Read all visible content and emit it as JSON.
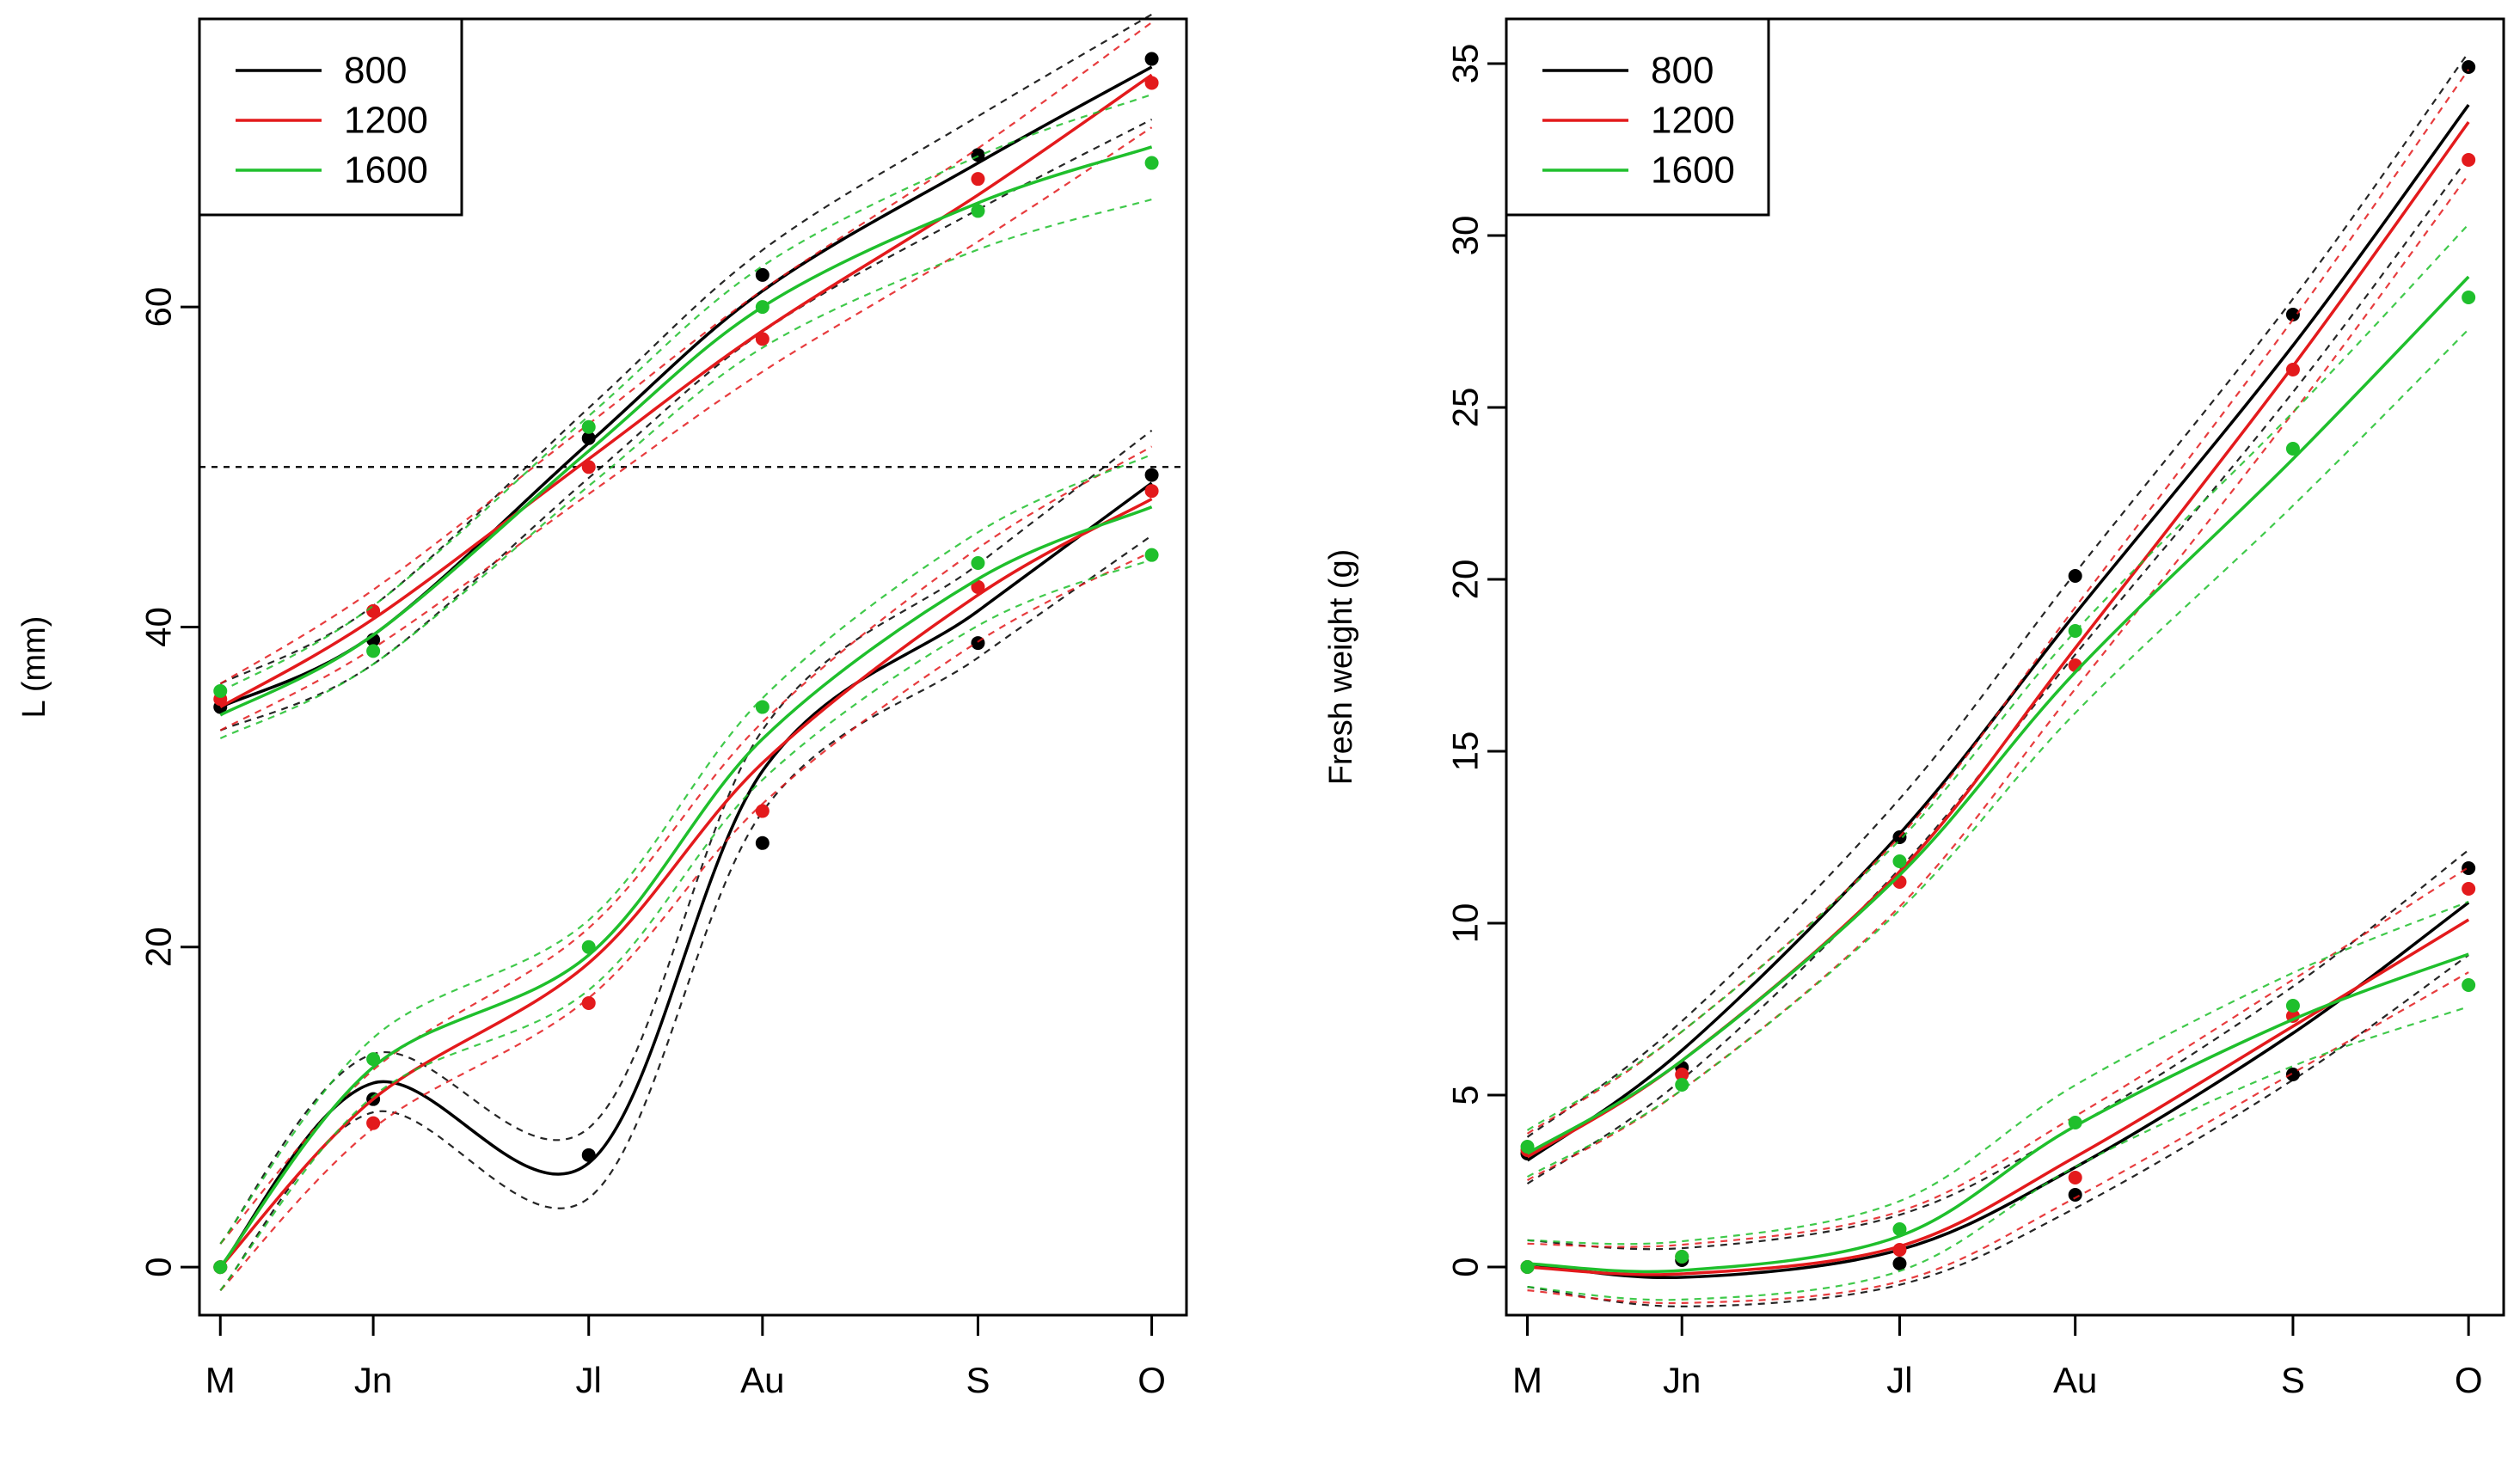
{
  "colors": {
    "800": "#000000",
    "1200": "#e31a1c",
    "1600": "#1fbf2c"
  },
  "chart_data": [
    {
      "type": "line",
      "ylabel": "L (mm)",
      "xlabel": "",
      "x_ticks": [
        {
          "label": "M",
          "x": 0
        },
        {
          "label": "Jn",
          "x": 1.1
        },
        {
          "label": "Jl",
          "x": 2.65
        },
        {
          "label": "Au",
          "x": 3.9
        },
        {
          "label": "S",
          "x": 5.45
        },
        {
          "label": "O",
          "x": 6.7
        }
      ],
      "xlim": [
        -0.15,
        6.95
      ],
      "ylim": [
        -3,
        78
      ],
      "y_ticks": [
        0,
        20,
        40,
        60
      ],
      "reference_line_y": 50,
      "legend": {
        "position": "top-left",
        "entries": [
          "800",
          "1200",
          "1600"
        ]
      },
      "series": [
        {
          "name": "800",
          "color_key": "800",
          "group": "upper",
          "x": [
            0,
            1.1,
            2.65,
            3.9,
            5.45,
            6.7
          ],
          "fit": [
            35,
            39.5,
            51.5,
            61,
            69,
            75
          ],
          "points": [
            [
              0,
              35
            ],
            [
              1.1,
              39.2
            ],
            [
              2.65,
              51.8
            ],
            [
              3.9,
              62
            ],
            [
              5.45,
              69.5
            ],
            [
              6.7,
              75.5
            ]
          ]
        },
        {
          "name": "1200",
          "color_key": "1200",
          "group": "upper",
          "x": [
            0,
            1.1,
            2.65,
            3.9,
            5.45,
            6.7
          ],
          "fit": [
            35,
            40.5,
            50.5,
            58.5,
            67,
            74.5
          ],
          "points": [
            [
              0,
              35.5
            ],
            [
              1.1,
              41
            ],
            [
              2.65,
              50
            ],
            [
              3.9,
              58
            ],
            [
              5.45,
              68
            ],
            [
              6.7,
              74
            ]
          ]
        },
        {
          "name": "1600",
          "color_key": "1600",
          "group": "upper",
          "x": [
            0,
            1.1,
            2.65,
            3.9,
            5.45,
            6.7
          ],
          "fit": [
            34.5,
            39.5,
            51,
            60,
            66.5,
            70
          ],
          "points": [
            [
              0,
              36
            ],
            [
              1.1,
              38.5
            ],
            [
              2.65,
              52.5
            ],
            [
              3.9,
              60
            ],
            [
              5.45,
              66
            ],
            [
              6.7,
              69
            ]
          ]
        },
        {
          "name": "800",
          "color_key": "800",
          "group": "lower",
          "x": [
            0,
            1.1,
            2.65,
            3.9,
            5.45,
            6.7
          ],
          "fit": [
            0,
            11.5,
            6.5,
            31,
            41,
            49
          ],
          "points": [
            [
              0,
              0
            ],
            [
              1.1,
              10.5
            ],
            [
              2.65,
              7
            ],
            [
              3.9,
              26.5
            ],
            [
              5.45,
              39
            ],
            [
              6.7,
              49.5
            ]
          ]
        },
        {
          "name": "1200",
          "color_key": "1200",
          "group": "lower",
          "x": [
            0,
            1.1,
            2.65,
            3.9,
            5.45,
            6.7
          ],
          "fit": [
            0,
            10.5,
            19,
            31.5,
            42,
            48
          ],
          "points": [
            [
              0,
              0
            ],
            [
              1.1,
              9
            ],
            [
              2.65,
              16.5
            ],
            [
              3.9,
              28.5
            ],
            [
              5.45,
              42.5
            ],
            [
              6.7,
              48.5
            ]
          ]
        },
        {
          "name": "1600",
          "color_key": "1600",
          "group": "lower",
          "x": [
            0,
            1.1,
            2.65,
            3.9,
            5.45,
            6.7
          ],
          "fit": [
            0,
            12.5,
            19.5,
            33,
            43,
            47.5
          ],
          "points": [
            [
              0,
              0
            ],
            [
              1.1,
              13
            ],
            [
              2.65,
              20
            ],
            [
              3.9,
              35
            ],
            [
              5.45,
              44
            ],
            [
              6.7,
              44.5
            ]
          ]
        }
      ]
    },
    {
      "type": "line",
      "ylabel": "Fresh weight (g)",
      "xlabel": "",
      "x_ticks": [
        {
          "label": "M",
          "x": 0
        },
        {
          "label": "Jn",
          "x": 1.1
        },
        {
          "label": "Jl",
          "x": 2.65
        },
        {
          "label": "Au",
          "x": 3.9
        },
        {
          "label": "S",
          "x": 5.45
        },
        {
          "label": "O",
          "x": 6.7
        }
      ],
      "xlim": [
        -0.15,
        6.95
      ],
      "ylim": [
        -1.4,
        36.3
      ],
      "y_ticks": [
        0,
        5,
        10,
        15,
        20,
        25,
        30,
        35
      ],
      "legend": {
        "position": "top-left",
        "entries": [
          "800",
          "1200",
          "1600"
        ]
      },
      "series": [
        {
          "name": "800",
          "color_key": "800",
          "group": "upper",
          "x": [
            0,
            1.1,
            2.65,
            3.9,
            5.45,
            6.7
          ],
          "fit": [
            3.1,
            6.3,
            12.6,
            19,
            26.8,
            33.8
          ],
          "points": [
            [
              0,
              3.3
            ],
            [
              1.1,
              5.8
            ],
            [
              2.65,
              12.5
            ],
            [
              3.9,
              20.1
            ],
            [
              5.45,
              27.7
            ],
            [
              6.7,
              34.9
            ]
          ]
        },
        {
          "name": "1200",
          "color_key": "1200",
          "group": "upper",
          "x": [
            0,
            1.1,
            2.65,
            3.9,
            5.45,
            6.7
          ],
          "fit": [
            3.2,
            6.0,
            11.5,
            18,
            26.2,
            33.3
          ],
          "points": [
            [
              0,
              3.4
            ],
            [
              1.1,
              5.6
            ],
            [
              2.65,
              11.2
            ],
            [
              3.9,
              17.5
            ],
            [
              5.45,
              26.1
            ],
            [
              6.7,
              32.2
            ]
          ]
        },
        {
          "name": "1600",
          "color_key": "1600",
          "group": "upper",
          "x": [
            0,
            1.1,
            2.65,
            3.9,
            5.45,
            6.7
          ],
          "fit": [
            3.3,
            6.0,
            11.4,
            17.3,
            23.5,
            28.8
          ],
          "points": [
            [
              0,
              3.5
            ],
            [
              1.1,
              5.3
            ],
            [
              2.65,
              11.8
            ],
            [
              3.9,
              18.5
            ],
            [
              5.45,
              23.8
            ],
            [
              6.7,
              28.2
            ]
          ]
        },
        {
          "name": "800",
          "color_key": "800",
          "group": "lower",
          "x": [
            0,
            1.1,
            2.65,
            3.9,
            5.45,
            6.7
          ],
          "fit": [
            0.1,
            -0.3,
            0.5,
            2.9,
            6.8,
            10.6
          ],
          "points": [
            [
              0,
              0
            ],
            [
              1.1,
              0.2
            ],
            [
              2.65,
              0.1
            ],
            [
              3.9,
              2.1
            ],
            [
              5.45,
              5.6
            ],
            [
              6.7,
              11.6
            ]
          ]
        },
        {
          "name": "1200",
          "color_key": "1200",
          "group": "lower",
          "x": [
            0,
            1.1,
            2.65,
            3.9,
            5.45,
            6.7
          ],
          "fit": [
            0,
            -0.2,
            0.6,
            3.2,
            7.0,
            10.1
          ],
          "points": [
            [
              0,
              0
            ],
            [
              1.1,
              0.3
            ],
            [
              2.65,
              0.5
            ],
            [
              3.9,
              2.6
            ],
            [
              5.45,
              7.3
            ],
            [
              6.7,
              11
            ]
          ]
        },
        {
          "name": "1600",
          "color_key": "1600",
          "group": "lower",
          "x": [
            0,
            1.1,
            2.65,
            3.9,
            5.45,
            6.7
          ],
          "fit": [
            0.1,
            -0.1,
            0.9,
            4.1,
            7.2,
            9.1
          ],
          "points": [
            [
              0,
              0
            ],
            [
              1.1,
              0.3
            ],
            [
              2.65,
              1.1
            ],
            [
              3.9,
              4.2
            ],
            [
              5.45,
              7.6
            ],
            [
              6.7,
              8.2
            ]
          ]
        }
      ]
    }
  ]
}
